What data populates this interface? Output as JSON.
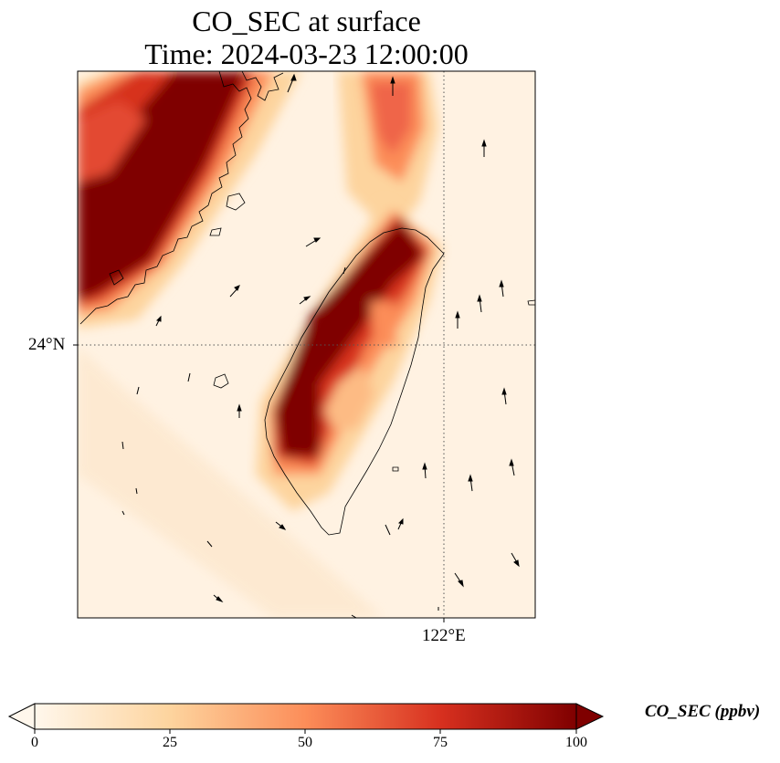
{
  "title": {
    "line1": "CO_SEC at surface",
    "line2": "Time: 2024-03-23 12:00:00"
  },
  "map": {
    "lat_label": "24°N",
    "lon_label": "122°E",
    "gridline_style": "dotted"
  },
  "colorbar": {
    "label": "CO_SEC (ppbv)",
    "ticks": [
      "0",
      "25",
      "50",
      "75",
      "100"
    ],
    "range": [
      0,
      100
    ],
    "colormap": "OrRd",
    "extend": "both",
    "colors": [
      "#fff7ec",
      "#fdd49e",
      "#fc8d59",
      "#d7301f",
      "#7f0000"
    ]
  }
}
